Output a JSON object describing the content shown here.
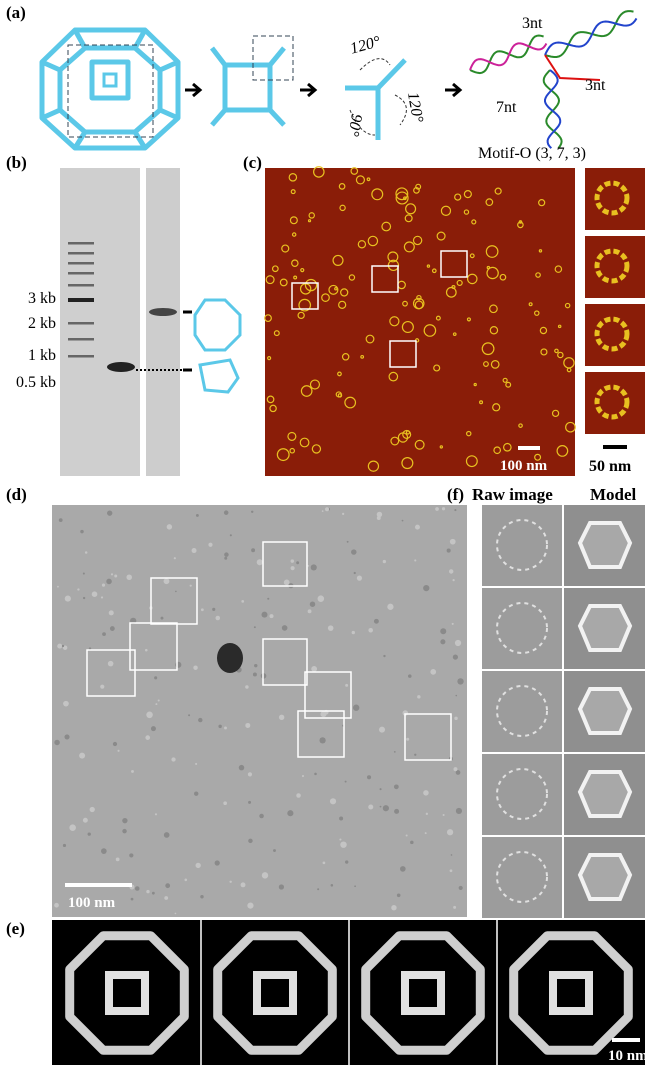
{
  "panels": {
    "a": {
      "label": "(a)",
      "angles": [
        "120°",
        "120°",
        "90°"
      ],
      "motif_labels": [
        "3nt",
        "3nt",
        "7nt"
      ],
      "motif_name": "Motif-O (3, 7, 3)"
    },
    "b": {
      "label": "(b)",
      "markers": [
        "3 kb",
        "2 kb",
        "1 kb",
        "0.5 kb"
      ]
    },
    "c": {
      "label": "(c)",
      "scale_main": "100 nm",
      "scale_inset": "50 nm"
    },
    "d": {
      "label": "(d)",
      "scale": "100 nm"
    },
    "f": {
      "label": "(f)",
      "columns": [
        "Raw image",
        "Model"
      ]
    },
    "e": {
      "label": "(e)",
      "scale": "10 nm"
    }
  }
}
